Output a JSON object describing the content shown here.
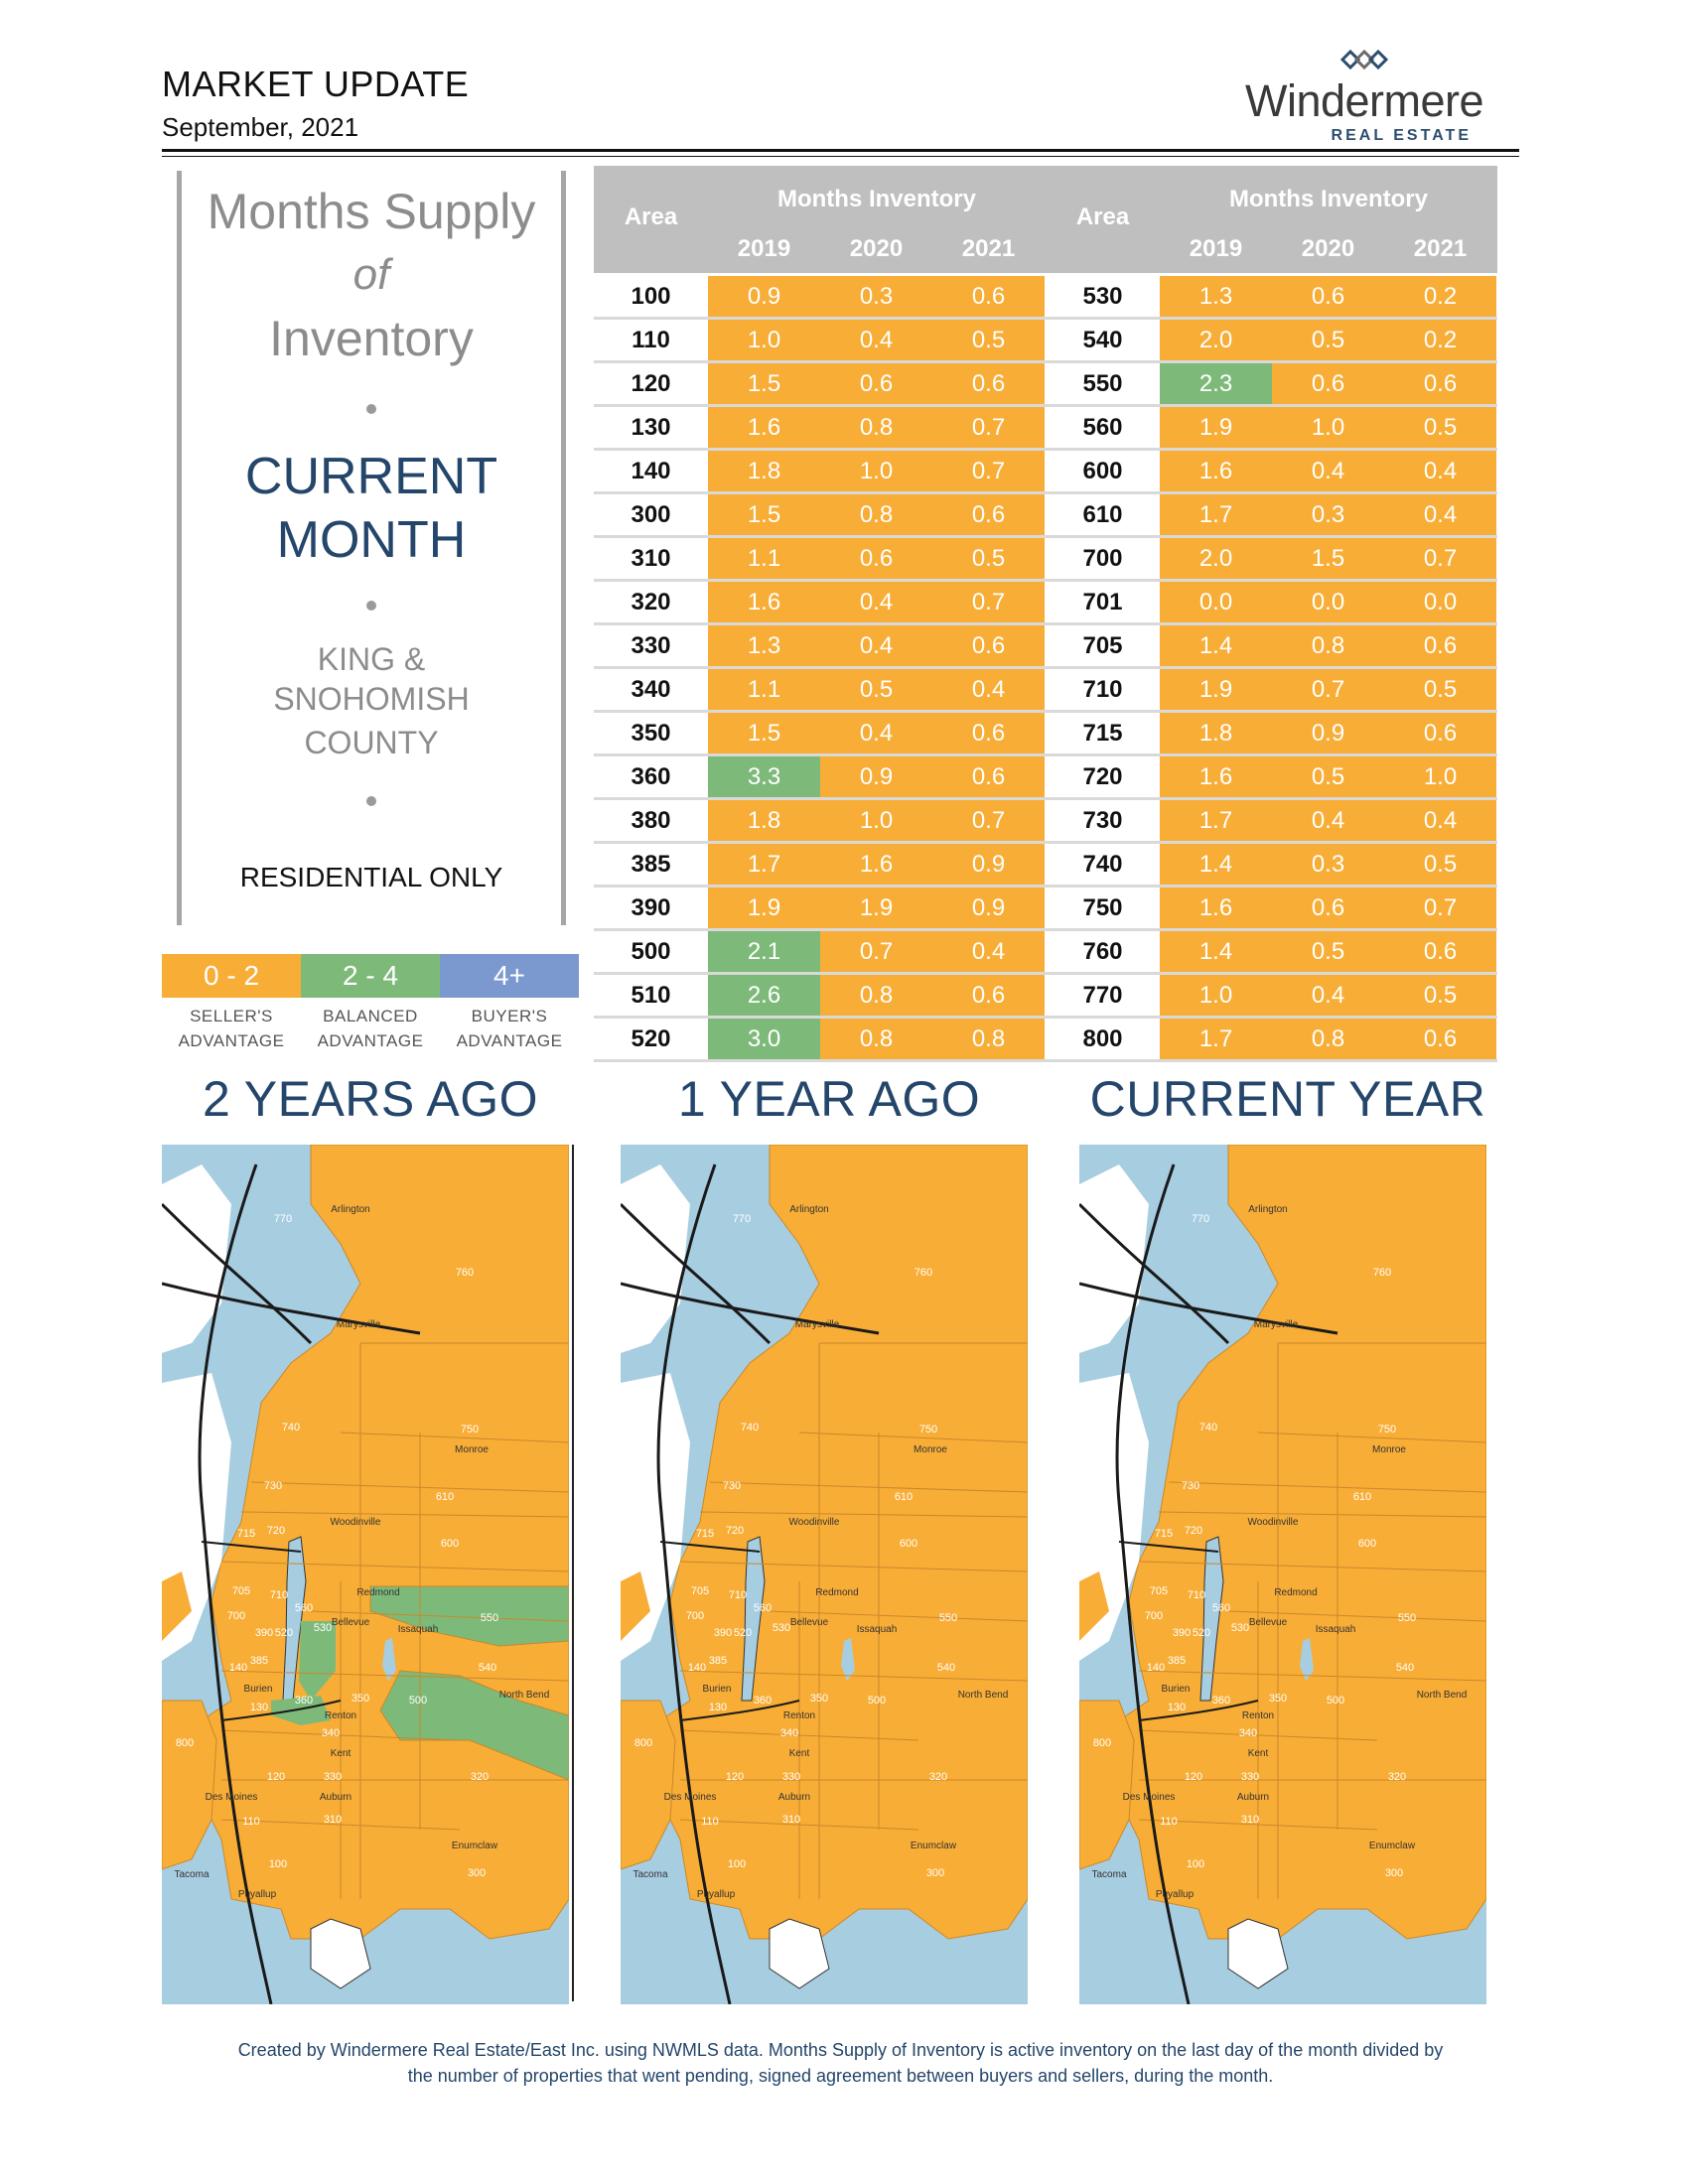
{
  "header": {
    "title": "MARKET UPDATE",
    "date": "September, 2021",
    "logo_name": "Windermere",
    "logo_sub": "REAL ESTATE"
  },
  "panel": {
    "line1": "Months Supply",
    "line2": "of",
    "line3": "Inventory",
    "current1": "CURRENT",
    "current2": "MONTH",
    "county1": "KING &",
    "county2": "SNOHOMISH",
    "county3": "COUNTY",
    "residential": "RESIDENTIAL ONLY"
  },
  "legend": [
    {
      "range": "0 - 2",
      "label1": "SELLER'S",
      "label2": "ADVANTAGE",
      "color": "#f8ad36"
    },
    {
      "range": "2 - 4",
      "label1": "BALANCED",
      "label2": "ADVANTAGE",
      "color": "#7dba7a"
    },
    {
      "range": "4+",
      "label1": "BUYER'S",
      "label2": "ADVANTAGE",
      "color": "#7c99cf"
    }
  ],
  "colors": {
    "seller": "#f8ad36",
    "balanced": "#7dba7a",
    "buyer": "#7c99cf",
    "water": "#a7cde1"
  },
  "table": {
    "area_header": "Area",
    "inventory_header": "Months Inventory",
    "years": [
      "2019",
      "2020",
      "2021"
    ],
    "left_rows": [
      {
        "area": "100",
        "values": [
          "0.9",
          "0.3",
          "0.6"
        ]
      },
      {
        "area": "110",
        "values": [
          "1.0",
          "0.4",
          "0.5"
        ]
      },
      {
        "area": "120",
        "values": [
          "1.5",
          "0.6",
          "0.6"
        ]
      },
      {
        "area": "130",
        "values": [
          "1.6",
          "0.8",
          "0.7"
        ]
      },
      {
        "area": "140",
        "values": [
          "1.8",
          "1.0",
          "0.7"
        ]
      },
      {
        "area": "300",
        "values": [
          "1.5",
          "0.8",
          "0.6"
        ]
      },
      {
        "area": "310",
        "values": [
          "1.1",
          "0.6",
          "0.5"
        ]
      },
      {
        "area": "320",
        "values": [
          "1.6",
          "0.4",
          "0.7"
        ]
      },
      {
        "area": "330",
        "values": [
          "1.3",
          "0.4",
          "0.6"
        ]
      },
      {
        "area": "340",
        "values": [
          "1.1",
          "0.5",
          "0.4"
        ]
      },
      {
        "area": "350",
        "values": [
          "1.5",
          "0.4",
          "0.6"
        ]
      },
      {
        "area": "360",
        "values": [
          "3.3",
          "0.9",
          "0.6"
        ]
      },
      {
        "area": "380",
        "values": [
          "1.8",
          "1.0",
          "0.7"
        ]
      },
      {
        "area": "385",
        "values": [
          "1.7",
          "1.6",
          "0.9"
        ]
      },
      {
        "area": "390",
        "values": [
          "1.9",
          "1.9",
          "0.9"
        ]
      },
      {
        "area": "500",
        "values": [
          "2.1",
          "0.7",
          "0.4"
        ]
      },
      {
        "area": "510",
        "values": [
          "2.6",
          "0.8",
          "0.6"
        ]
      },
      {
        "area": "520",
        "values": [
          "3.0",
          "0.8",
          "0.8"
        ]
      }
    ],
    "right_rows": [
      {
        "area": "530",
        "values": [
          "1.3",
          "0.6",
          "0.2"
        ]
      },
      {
        "area": "540",
        "values": [
          "2.0",
          "0.5",
          "0.2"
        ]
      },
      {
        "area": "550",
        "values": [
          "2.3",
          "0.6",
          "0.6"
        ]
      },
      {
        "area": "560",
        "values": [
          "1.9",
          "1.0",
          "0.5"
        ]
      },
      {
        "area": "600",
        "values": [
          "1.6",
          "0.4",
          "0.4"
        ]
      },
      {
        "area": "610",
        "values": [
          "1.7",
          "0.3",
          "0.4"
        ]
      },
      {
        "area": "700",
        "values": [
          "2.0",
          "1.5",
          "0.7"
        ]
      },
      {
        "area": "701",
        "values": [
          "0.0",
          "0.0",
          "0.0"
        ]
      },
      {
        "area": "705",
        "values": [
          "1.4",
          "0.8",
          "0.6"
        ]
      },
      {
        "area": "710",
        "values": [
          "1.9",
          "0.7",
          "0.5"
        ]
      },
      {
        "area": "715",
        "values": [
          "1.8",
          "0.9",
          "0.6"
        ]
      },
      {
        "area": "720",
        "values": [
          "1.6",
          "0.5",
          "1.0"
        ]
      },
      {
        "area": "730",
        "values": [
          "1.7",
          "0.4",
          "0.4"
        ]
      },
      {
        "area": "740",
        "values": [
          "1.4",
          "0.3",
          "0.5"
        ]
      },
      {
        "area": "750",
        "values": [
          "1.6",
          "0.6",
          "0.7"
        ]
      },
      {
        "area": "760",
        "values": [
          "1.4",
          "0.5",
          "0.6"
        ]
      },
      {
        "area": "770",
        "values": [
          "1.0",
          "0.4",
          "0.5"
        ]
      },
      {
        "area": "800",
        "values": [
          "1.7",
          "0.8",
          "0.6"
        ]
      }
    ]
  },
  "maps": [
    {
      "title": "2 YEARS AGO"
    },
    {
      "title": "1 YEAR AGO"
    },
    {
      "title": "CURRENT YEAR"
    }
  ],
  "map_labels": {
    "areas": [
      "770",
      "760",
      "740",
      "750",
      "730",
      "610",
      "715",
      "720",
      "600",
      "705",
      "710",
      "560",
      "550",
      "700",
      "390",
      "520",
      "530",
      "140",
      "385",
      "540",
      "130",
      "360",
      "350",
      "500",
      "800",
      "340",
      "320",
      "120",
      "330",
      "310",
      "110",
      "100",
      "300"
    ],
    "places": [
      "Arlington",
      "Marysville",
      "Monroe",
      "Woodinville",
      "Redmond",
      "Bellevue",
      "Issaquah",
      "Burien",
      "Renton",
      "Kent",
      "Auburn",
      "Enumclaw",
      "Tacoma",
      "Puyallup",
      "North Bend",
      "Des Moines"
    ]
  },
  "footer": {
    "line1": "Created by Windermere Real Estate/East Inc. using NWMLS data. Months Supply of Inventory is active inventory on the last day of the month divided by",
    "line2": "the number of properties that went pending, signed agreement between buyers and sellers, during the month."
  }
}
